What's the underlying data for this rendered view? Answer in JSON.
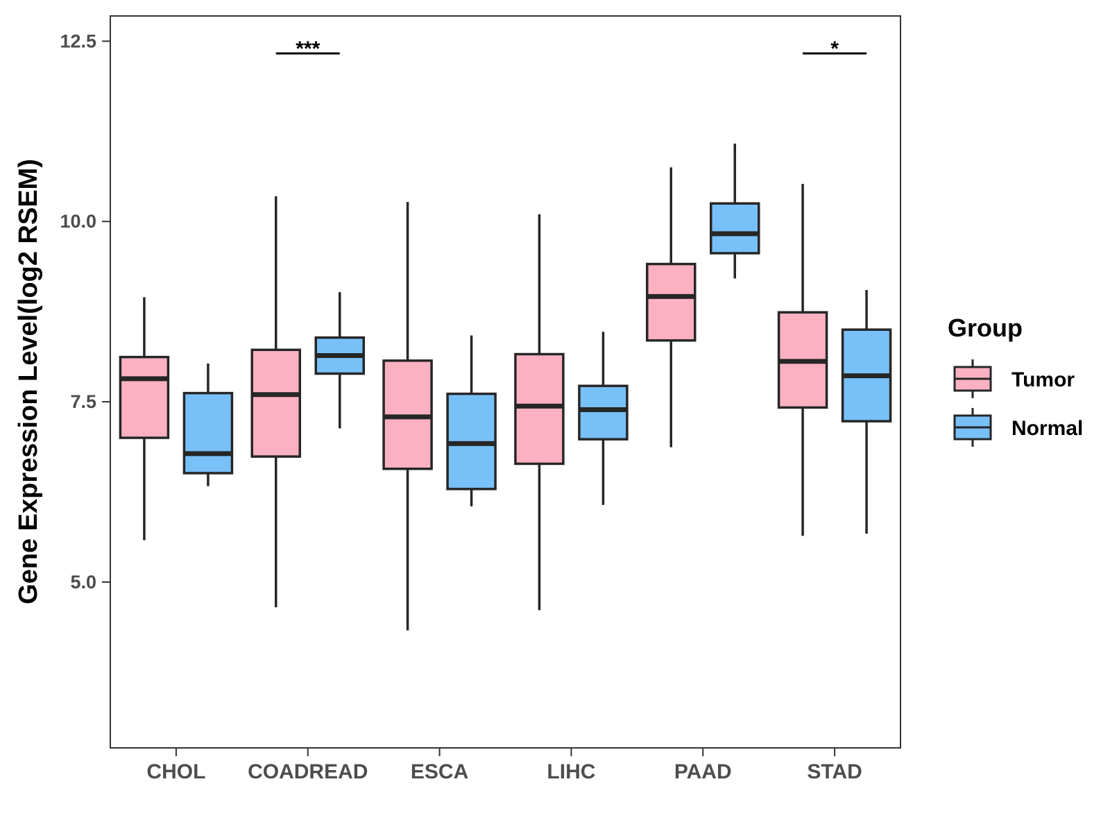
{
  "chart_data": {
    "type": "boxplot",
    "title": "",
    "xlabel": "",
    "ylabel": "Gene Expression Level(log2 RSEM)",
    "ylim": [
      2.7,
      12.85
    ],
    "yticks": [
      "5.0",
      "7.5",
      "10.0",
      "12.5"
    ],
    "ytick_values": [
      5.0,
      7.5,
      10.0,
      12.5
    ],
    "categories": [
      "CHOL",
      "COADREAD",
      "ESCA",
      "LIHC",
      "PAAD",
      "STAD"
    ],
    "grid": false,
    "legend": {
      "title": "Group",
      "position": "right",
      "entries": [
        "Tumor",
        "Normal"
      ]
    },
    "colors": {
      "Tumor": "#fcb1c2",
      "Normal": "#78c0f8",
      "outline": "#262626"
    },
    "series": [
      {
        "name": "Tumor",
        "boxes": [
          {
            "min": 5.58,
            "q1": 7.0,
            "median": 7.82,
            "q3": 8.12,
            "max": 8.95
          },
          {
            "min": 4.65,
            "q1": 6.74,
            "median": 7.6,
            "q3": 8.22,
            "max": 10.35
          },
          {
            "min": 4.33,
            "q1": 6.57,
            "median": 7.29,
            "q3": 8.07,
            "max": 10.27
          },
          {
            "min": 4.61,
            "q1": 6.64,
            "median": 7.44,
            "q3": 8.16,
            "max": 10.1
          },
          {
            "min": 6.87,
            "q1": 8.35,
            "median": 8.96,
            "q3": 9.41,
            "max": 10.75
          },
          {
            "min": 5.64,
            "q1": 7.42,
            "median": 8.06,
            "q3": 8.74,
            "max": 10.52
          }
        ]
      },
      {
        "name": "Normal",
        "boxes": [
          {
            "min": 6.33,
            "q1": 6.51,
            "median": 6.78,
            "q3": 7.62,
            "max": 8.03
          },
          {
            "min": 7.13,
            "q1": 7.89,
            "median": 8.14,
            "q3": 8.39,
            "max": 9.02
          },
          {
            "min": 6.05,
            "q1": 6.29,
            "median": 6.92,
            "q3": 7.61,
            "max": 8.42
          },
          {
            "min": 6.07,
            "q1": 6.98,
            "median": 7.39,
            "q3": 7.72,
            "max": 8.47
          },
          {
            "min": 9.21,
            "q1": 9.56,
            "median": 9.83,
            "q3": 10.25,
            "max": 11.08
          },
          {
            "min": 5.67,
            "q1": 7.23,
            "median": 7.86,
            "q3": 8.5,
            "max": 9.05
          }
        ]
      }
    ],
    "annotations": [
      {
        "category": "COADREAD",
        "text": "***",
        "y": 12.33
      },
      {
        "category": "STAD",
        "text": "*",
        "y": 12.33
      }
    ]
  }
}
